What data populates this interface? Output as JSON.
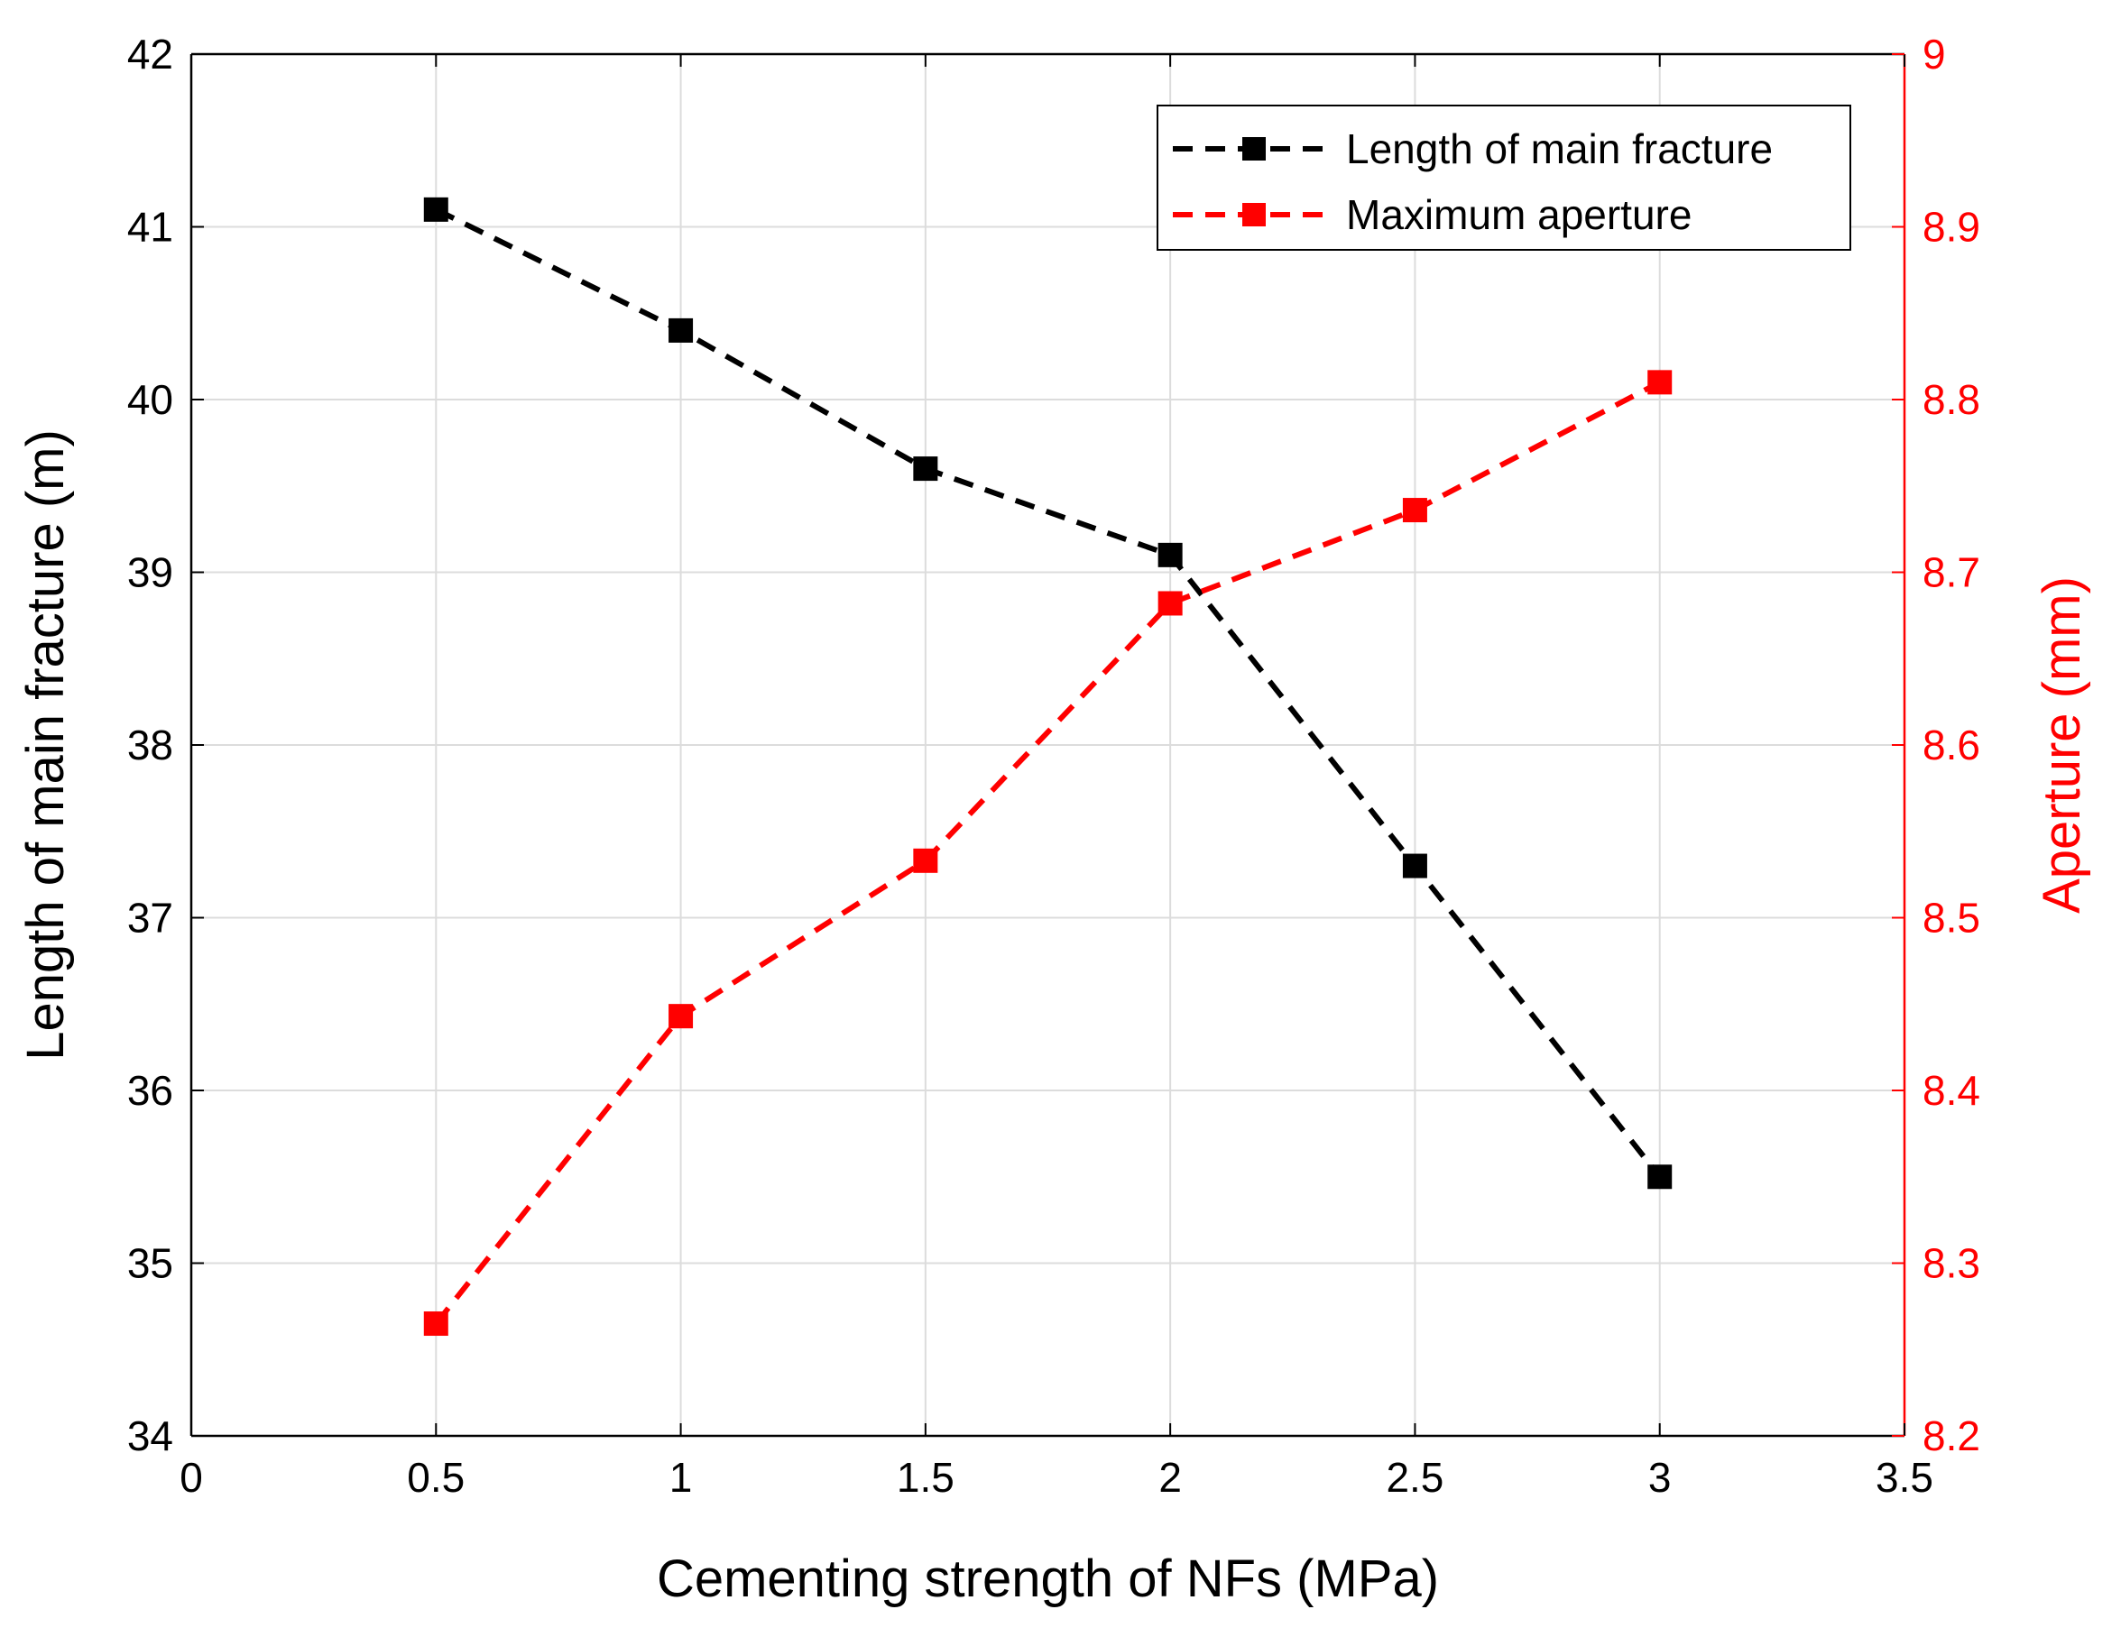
{
  "chart_data": {
    "type": "line",
    "title": "",
    "xlabel": "Cementing strength of NFs (MPa)",
    "ylabel_left": "Length of main fracture (m)",
    "ylabel_right": "Aperture (mm)",
    "xlim": [
      0,
      3.5
    ],
    "ylim_left": [
      34,
      42
    ],
    "ylim_right": [
      8.2,
      9
    ],
    "x_ticks": [
      "0",
      "0.5",
      "1",
      "1.5",
      "2",
      "2.5",
      "3",
      "3.5"
    ],
    "y_ticks_left": [
      "34",
      "35",
      "36",
      "37",
      "38",
      "39",
      "40",
      "41",
      "42"
    ],
    "y_ticks_right": [
      "8.2",
      "8.3",
      "8.4",
      "8.5",
      "8.6",
      "8.7",
      "8.8",
      "8.9",
      "9"
    ],
    "grid": true,
    "legend_position": "top-right",
    "series": [
      {
        "name": "Length of main fracture",
        "axis": "left",
        "color": "#000000",
        "marker": "square",
        "linestyle": "dashed",
        "x": [
          0.5,
          1,
          1.5,
          2,
          2.5,
          3
        ],
        "values": [
          41.1,
          40.4,
          39.6,
          39.1,
          37.3,
          35.5
        ]
      },
      {
        "name": "Maximum aperture",
        "axis": "right",
        "color": "#ff0000",
        "marker": "square",
        "linestyle": "dashed",
        "x": [
          0.5,
          1,
          1.5,
          2,
          2.5,
          3
        ],
        "values": [
          8.265,
          8.443,
          8.533,
          8.682,
          8.736,
          8.81
        ]
      }
    ]
  },
  "colors": {
    "left_axis": "#000000",
    "right_axis": "#ff0000",
    "grid": "#dcdcdc"
  }
}
